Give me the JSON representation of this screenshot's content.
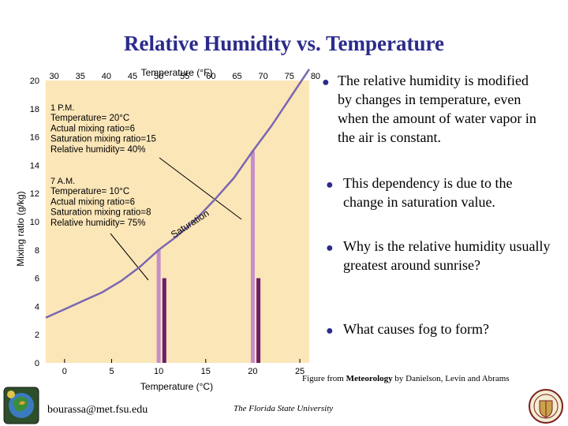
{
  "slide": {
    "title": "Relative Humidity vs. Temperature",
    "bullets": [
      "The relative humidity is modified by changes in temperature, even when the amount of water vapor in the air is constant.",
      "This dependency is due to the change in saturation value.",
      "Why is the relative humidity usually greatest around sunrise?",
      "What causes fog to form?"
    ],
    "caption_prefix": "Figure from ",
    "caption_book": "Meteorology",
    "caption_suffix": " by Danielson, Levin and Abrams",
    "footer_email": "bourassa@met.fsu.edu",
    "footer_university": "The Florida State University"
  },
  "chart_data": {
    "type": "line",
    "title": "",
    "xlabel": "Temperature (°C)",
    "x2label": "Temperature (°F)",
    "ylabel": "Mixing ratio (g/kg)",
    "xlim": [
      -2,
      26
    ],
    "ylim": [
      0,
      20
    ],
    "x_ticks": [
      0,
      5,
      10,
      15,
      20,
      25
    ],
    "y_ticks": [
      0,
      2,
      4,
      6,
      8,
      10,
      12,
      14,
      16,
      18,
      20
    ],
    "x2_ticks": [
      30,
      35,
      40,
      45,
      50,
      55,
      60,
      65,
      70,
      75,
      80
    ],
    "curve_label": "Saturation",
    "series": [
      {
        "name": "Saturation",
        "x": [
          -2,
          0,
          2,
          4,
          6,
          8,
          10,
          12,
          14,
          16,
          18,
          20,
          22,
          24,
          26
        ],
        "y": [
          3.2,
          3.8,
          4.4,
          5.0,
          5.8,
          6.8,
          8.0,
          9.0,
          10.2,
          11.6,
          13.1,
          15.0,
          16.8,
          18.8,
          21.3
        ]
      }
    ],
    "bars": [
      {
        "x": 10,
        "value": 8,
        "kind": "saturation"
      },
      {
        "x": 10.6,
        "value": 6,
        "kind": "actual"
      },
      {
        "x": 20,
        "value": 15,
        "kind": "saturation"
      },
      {
        "x": 20.6,
        "value": 6,
        "kind": "actual"
      }
    ],
    "annotations": [
      {
        "lines": [
          "1 P.M.",
          "Temperature= 20°C",
          "Actual mixing ratio=6",
          "Saturation mixing ratio=15",
          "Relative humidity= 40%"
        ]
      },
      {
        "lines": [
          "7 A.M.",
          "Temperature= 10°C",
          "Actual mixing ratio=6",
          "Saturation mixing ratio=8",
          "Relative humidity= 75%"
        ]
      }
    ],
    "colors": {
      "background": "#fbe6b8",
      "curve": "#7a67b0",
      "saturation_bar": "#c58ec8",
      "actual_bar": "#6e1d6a",
      "title": "#2b2b8c"
    }
  }
}
